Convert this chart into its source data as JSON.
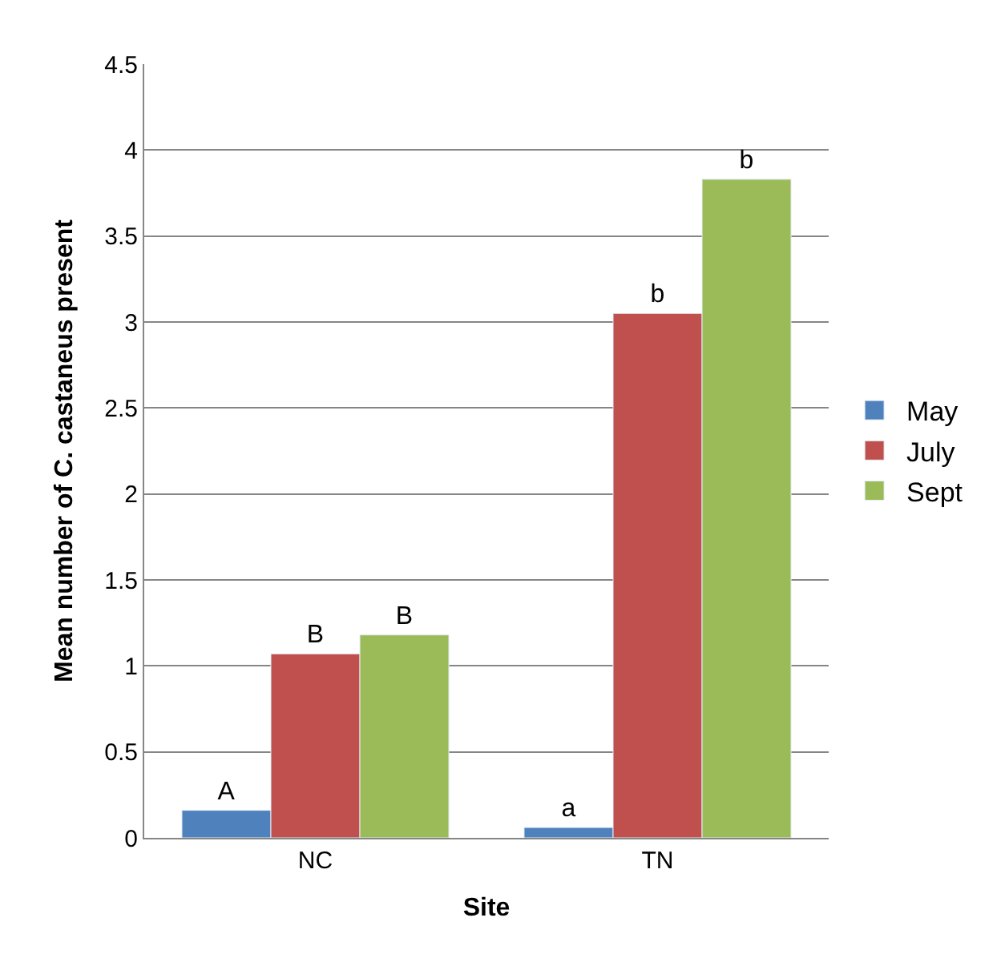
{
  "chart_data": {
    "type": "bar",
    "xlabel": "Site",
    "ylabel": "Mean number of C. castaneus present",
    "categories": [
      "NC",
      "TN"
    ],
    "series": [
      {
        "name": "May",
        "color": "#4f81bd",
        "values": [
          0.16,
          0.06
        ],
        "value_labels": [
          "A",
          "a"
        ]
      },
      {
        "name": "July",
        "color": "#c0504d",
        "values": [
          1.07,
          3.05
        ],
        "value_labels": [
          "B",
          "b"
        ]
      },
      {
        "name": "Sept",
        "color": "#9bbb59",
        "values": [
          1.18,
          3.83
        ],
        "value_labels": [
          "B",
          "b"
        ]
      }
    ],
    "ylim": [
      0,
      4.5
    ],
    "yticks": [
      0,
      0.5,
      1,
      1.5,
      2,
      2.5,
      3,
      3.5,
      4,
      4.5
    ],
    "grid": "y",
    "legend": "right"
  }
}
